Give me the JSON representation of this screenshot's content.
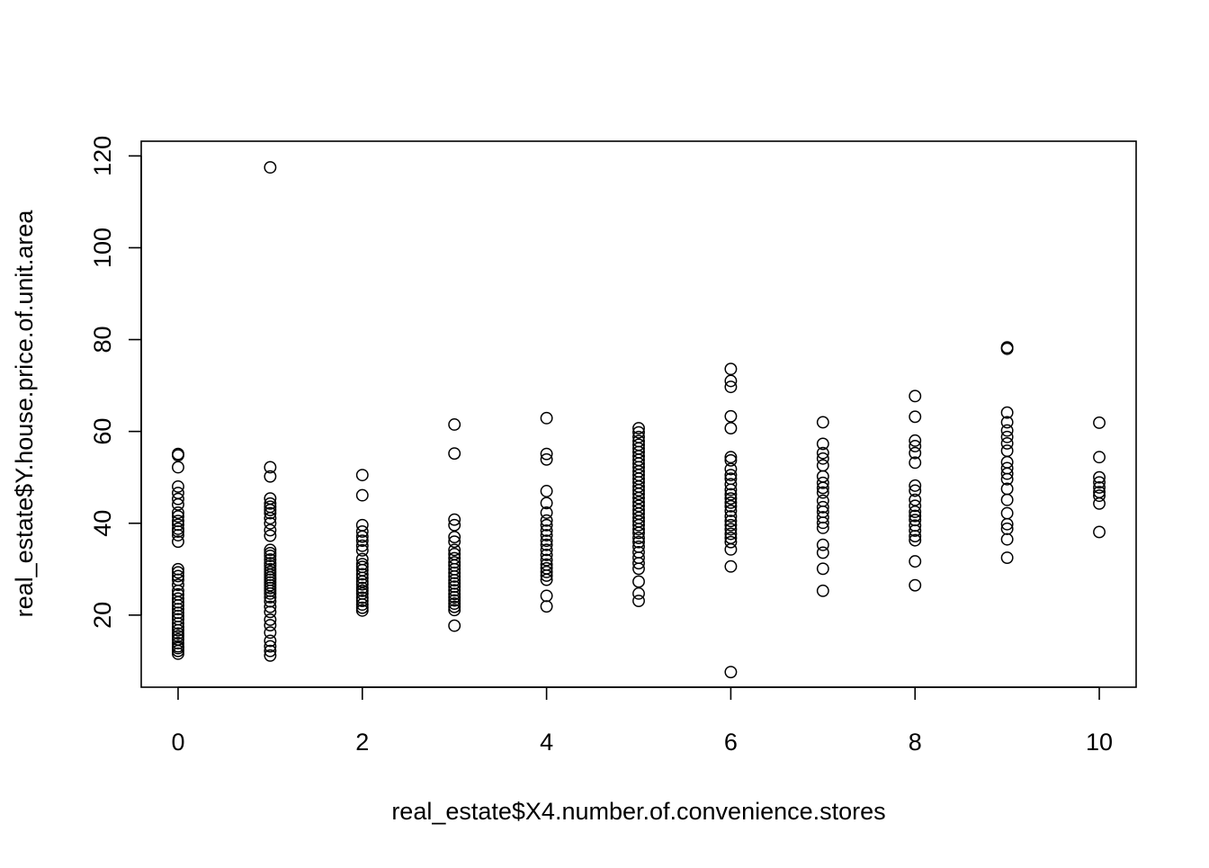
{
  "chart_data": {
    "type": "scatter",
    "title": "",
    "xlabel": "real_estate$X4.number.of.convenience.stores",
    "ylabel": "real_estate$Y.house.price.of.unit.area",
    "xlim": [
      -0.4,
      10.4
    ],
    "ylim": [
      4.3,
      123.2
    ],
    "x_ticks": [
      0,
      2,
      4,
      6,
      8,
      10
    ],
    "y_ticks": [
      20,
      40,
      60,
      80,
      100,
      120
    ],
    "grid": false,
    "legend": "none",
    "marker": "open-circle",
    "colors": {
      "points": "#000000",
      "axes": "#000000",
      "background": "#ffffff"
    },
    "series": [
      {
        "values": [
          [
            0,
            55.1
          ],
          [
            0,
            54.8
          ],
          [
            0,
            52.2
          ],
          [
            0,
            48
          ],
          [
            0,
            46.6
          ],
          [
            0,
            45.3
          ],
          [
            0,
            44.1
          ],
          [
            0,
            42.3
          ],
          [
            0,
            41.5
          ],
          [
            0,
            40.5
          ],
          [
            0,
            39.7
          ],
          [
            0,
            38.8
          ],
          [
            0,
            38.2
          ],
          [
            0,
            37.4
          ],
          [
            0,
            36
          ],
          [
            0,
            30
          ],
          [
            0,
            29.3
          ],
          [
            0,
            28.5
          ],
          [
            0,
            27.7
          ],
          [
            0,
            26.6
          ],
          [
            0,
            25.3
          ],
          [
            0,
            24.5
          ],
          [
            0,
            23.6
          ],
          [
            0,
            22.8
          ],
          [
            0,
            22.1
          ],
          [
            0,
            21.3
          ],
          [
            0,
            20.5
          ],
          [
            0,
            19.8
          ],
          [
            0,
            19.1
          ],
          [
            0,
            18.2
          ],
          [
            0,
            17.4
          ],
          [
            0,
            16.7
          ],
          [
            0,
            16
          ],
          [
            0,
            15.4
          ],
          [
            0,
            14.7
          ],
          [
            0,
            13.9
          ],
          [
            0,
            13.2
          ],
          [
            0,
            12.8
          ],
          [
            0,
            12.2
          ],
          [
            0,
            11.6
          ],
          [
            1,
            117.5
          ],
          [
            1,
            52.2
          ],
          [
            1,
            50.2
          ],
          [
            1,
            45.4
          ],
          [
            1,
            44.3
          ],
          [
            1,
            43.6
          ],
          [
            1,
            42.9
          ],
          [
            1,
            42.2
          ],
          [
            1,
            41.1
          ],
          [
            1,
            40
          ],
          [
            1,
            38.5
          ],
          [
            1,
            37.3
          ],
          [
            1,
            34.2
          ],
          [
            1,
            33.5
          ],
          [
            1,
            32.9
          ],
          [
            1,
            32.1
          ],
          [
            1,
            31.3
          ],
          [
            1,
            30.7
          ],
          [
            1,
            30
          ],
          [
            1,
            29.4
          ],
          [
            1,
            28.8
          ],
          [
            1,
            28.2
          ],
          [
            1,
            27.7
          ],
          [
            1,
            27.1
          ],
          [
            1,
            26.5
          ],
          [
            1,
            25.9
          ],
          [
            1,
            25.3
          ],
          [
            1,
            24.7
          ],
          [
            1,
            23.9
          ],
          [
            1,
            23
          ],
          [
            1,
            21.8
          ],
          [
            1,
            20.7
          ],
          [
            1,
            19
          ],
          [
            1,
            17.8
          ],
          [
            1,
            16.2
          ],
          [
            1,
            14.4
          ],
          [
            1,
            13.2
          ],
          [
            1,
            12.2
          ],
          [
            1,
            11.2
          ],
          [
            2,
            50.5
          ],
          [
            2,
            46.1
          ],
          [
            2,
            39.6
          ],
          [
            2,
            38.2
          ],
          [
            2,
            37.1
          ],
          [
            2,
            36.2
          ],
          [
            2,
            35.1
          ],
          [
            2,
            34.1
          ],
          [
            2,
            32.2
          ],
          [
            2,
            31.1
          ],
          [
            2,
            30.5
          ],
          [
            2,
            29.8
          ],
          [
            2,
            28.9
          ],
          [
            2,
            28.1
          ],
          [
            2,
            27.3
          ],
          [
            2,
            26.7
          ],
          [
            2,
            25.9
          ],
          [
            2,
            25.3
          ],
          [
            2,
            24.7
          ],
          [
            2,
            23.8
          ],
          [
            2,
            23.1
          ],
          [
            2,
            22.3
          ],
          [
            2,
            21.6
          ],
          [
            2,
            21
          ],
          [
            3,
            61.5
          ],
          [
            3,
            55.2
          ],
          [
            3,
            40.8
          ],
          [
            3,
            39.6
          ],
          [
            3,
            37
          ],
          [
            3,
            36
          ],
          [
            3,
            34.2
          ],
          [
            3,
            33.3
          ],
          [
            3,
            32.4
          ],
          [
            3,
            31.5
          ],
          [
            3,
            30.8
          ],
          [
            3,
            30
          ],
          [
            3,
            29.2
          ],
          [
            3,
            28.4
          ],
          [
            3,
            27.6
          ],
          [
            3,
            26.9
          ],
          [
            3,
            26.2
          ],
          [
            3,
            25.4
          ],
          [
            3,
            24.6
          ],
          [
            3,
            23.9
          ],
          [
            3,
            23.2
          ],
          [
            3,
            22.5
          ],
          [
            3,
            21.8
          ],
          [
            3,
            21.1
          ],
          [
            3,
            17.7
          ],
          [
            4,
            62.9
          ],
          [
            4,
            55.1
          ],
          [
            4,
            53.9
          ],
          [
            4,
            47
          ],
          [
            4,
            44.4
          ],
          [
            4,
            42.3
          ],
          [
            4,
            40.6
          ],
          [
            4,
            39.6
          ],
          [
            4,
            38.4
          ],
          [
            4,
            37.4
          ],
          [
            4,
            36.2
          ],
          [
            4,
            35.3
          ],
          [
            4,
            34.2
          ],
          [
            4,
            33.1
          ],
          [
            4,
            32
          ],
          [
            4,
            31
          ],
          [
            4,
            30.2
          ],
          [
            4,
            29.4
          ],
          [
            4,
            28.6
          ],
          [
            4,
            27.7
          ],
          [
            4,
            24.2
          ],
          [
            4,
            21.9
          ],
          [
            5,
            60.7
          ],
          [
            5,
            59.8
          ],
          [
            5,
            58.8
          ],
          [
            5,
            57.9
          ],
          [
            5,
            57.1
          ],
          [
            5,
            56.3
          ],
          [
            5,
            55.5
          ],
          [
            5,
            54.6
          ],
          [
            5,
            53.8
          ],
          [
            5,
            53
          ],
          [
            5,
            52.2
          ],
          [
            5,
            51.3
          ],
          [
            5,
            50.5
          ],
          [
            5,
            49.7
          ],
          [
            5,
            48.9
          ],
          [
            5,
            48
          ],
          [
            5,
            47.2
          ],
          [
            5,
            46.4
          ],
          [
            5,
            45.5
          ],
          [
            5,
            44.6
          ],
          [
            5,
            43.8
          ],
          [
            5,
            42.9
          ],
          [
            5,
            42.1
          ],
          [
            5,
            41.2
          ],
          [
            5,
            40.4
          ],
          [
            5,
            39.6
          ],
          [
            5,
            38.7
          ],
          [
            5,
            37.9
          ],
          [
            5,
            36.8
          ],
          [
            5,
            35.9
          ],
          [
            5,
            34.9
          ],
          [
            5,
            33.7
          ],
          [
            5,
            32.5
          ],
          [
            5,
            31.3
          ],
          [
            5,
            30.1
          ],
          [
            5,
            27.3
          ],
          [
            5,
            24.7
          ],
          [
            5,
            23.1
          ],
          [
            6,
            73.6
          ],
          [
            6,
            71.0
          ],
          [
            6,
            69.7
          ],
          [
            6,
            63.3
          ],
          [
            6,
            60.7
          ],
          [
            6,
            54.4
          ],
          [
            6,
            53.7
          ],
          [
            6,
            51.8
          ],
          [
            6,
            50.5
          ],
          [
            6,
            49.7
          ],
          [
            6,
            48.5
          ],
          [
            6,
            47.3
          ],
          [
            6,
            46.3
          ],
          [
            6,
            45.4
          ],
          [
            6,
            44.5
          ],
          [
            6,
            43.7
          ],
          [
            6,
            42.7
          ],
          [
            6,
            41.5
          ],
          [
            6,
            40.5
          ],
          [
            6,
            39.6
          ],
          [
            6,
            38.7
          ],
          [
            6,
            37.7
          ],
          [
            6,
            36.8
          ],
          [
            6,
            35.9
          ],
          [
            6,
            34.3
          ],
          [
            6,
            30.6
          ],
          [
            6,
            7.6
          ],
          [
            7,
            62
          ],
          [
            7,
            57.3
          ],
          [
            7,
            55.3
          ],
          [
            7,
            54.1
          ],
          [
            7,
            52.6
          ],
          [
            7,
            50.2
          ],
          [
            7,
            48.8
          ],
          [
            7,
            47.7
          ],
          [
            7,
            46.7
          ],
          [
            7,
            44.9
          ],
          [
            7,
            43.5
          ],
          [
            7,
            42.5
          ],
          [
            7,
            41.3
          ],
          [
            7,
            40.1
          ],
          [
            7,
            39
          ],
          [
            7,
            35.3
          ],
          [
            7,
            33.6
          ],
          [
            7,
            30.1
          ],
          [
            7,
            25.3
          ],
          [
            8,
            67.7
          ],
          [
            8,
            63.2
          ],
          [
            8,
            58
          ],
          [
            8,
            56.8
          ],
          [
            8,
            55.3
          ],
          [
            8,
            53.2
          ],
          [
            8,
            48.2
          ],
          [
            8,
            47.1
          ],
          [
            8,
            45.1
          ],
          [
            8,
            43.8
          ],
          [
            8,
            42.5
          ],
          [
            8,
            41.6
          ],
          [
            8,
            40.7
          ],
          [
            8,
            39.5
          ],
          [
            8,
            38.4
          ],
          [
            8,
            37.2
          ],
          [
            8,
            36.3
          ],
          [
            8,
            31.7
          ],
          [
            8,
            26.5
          ],
          [
            9,
            78.3
          ],
          [
            9,
            78.0
          ],
          [
            9,
            64.1
          ],
          [
            9,
            62.0
          ],
          [
            9,
            60.2
          ],
          [
            9,
            58.8
          ],
          [
            9,
            57.4
          ],
          [
            9,
            55.8
          ],
          [
            9,
            53.3
          ],
          [
            9,
            52.0
          ],
          [
            9,
            50.8
          ],
          [
            9,
            49.6
          ],
          [
            9,
            47.5
          ],
          [
            9,
            45.1
          ],
          [
            9,
            42.2
          ],
          [
            9,
            39.8
          ],
          [
            9,
            38.8
          ],
          [
            9,
            36.5
          ],
          [
            9,
            32.5
          ],
          [
            10,
            61.9
          ],
          [
            10,
            54.4
          ],
          [
            10,
            50
          ],
          [
            10,
            48.9
          ],
          [
            10,
            47.8
          ],
          [
            10,
            46.8
          ],
          [
            10,
            46
          ],
          [
            10,
            44.3
          ],
          [
            10,
            38.1
          ]
        ]
      }
    ]
  }
}
